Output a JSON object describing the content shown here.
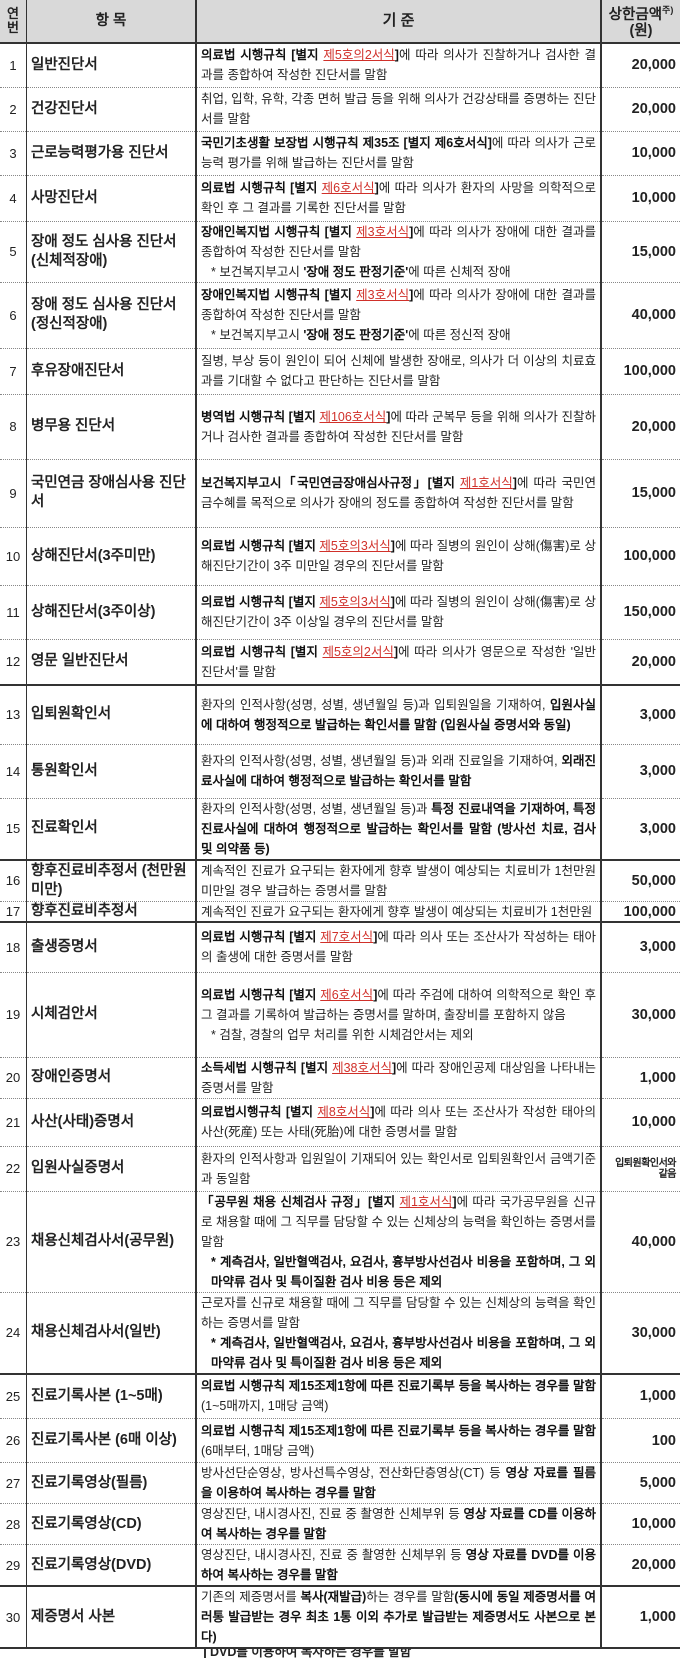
{
  "header": {
    "no": "연번",
    "item": "항 목",
    "criteria": "기 준",
    "amount": "상한금액",
    "amount_sup": "주)",
    "amount_unit": "(원)"
  },
  "rows": [
    {
      "no": "1",
      "item": "일반진단서",
      "criteria": [
        {
          "t": "의료법 시행규칙 [별지 ",
          "s": "b"
        },
        {
          "t": "제5호의2서식",
          "s": "r"
        },
        {
          "t": "]",
          "s": "b"
        },
        {
          "t": "에 따라 의사가 진찰하거나 검사한 결과를 종합하여 작성한 진단서를 말함",
          "s": ""
        }
      ],
      "amount": "20,000"
    },
    {
      "no": "2",
      "item": "건강진단서",
      "criteria": [
        {
          "t": "취업, 입학, 유학, 각종 면허 발급 등을 위해 의사가 건강상태를 증명하는 진단서를 말함",
          "s": ""
        }
      ],
      "amount": "20,000"
    },
    {
      "no": "3",
      "item": "근로능력평가용 진단서",
      "criteria": [
        {
          "t": "국민기초생활 보장법 시행규칙 제35조 [별지 제6호서식]",
          "s": "b"
        },
        {
          "t": "에 따라 의사가 근로능력 평가를 위해 발급하는 진단서를 말함",
          "s": ""
        }
      ],
      "amount": "10,000"
    },
    {
      "no": "4",
      "item": "사망진단서",
      "criteria": [
        {
          "t": "의료법 시행규칙 [별지 ",
          "s": "b"
        },
        {
          "t": "제6호서식",
          "s": "r"
        },
        {
          "t": "]",
          "s": "b"
        },
        {
          "t": "에 따라 의사가 환자의 사망을 의학적으로 확인 후 그 결과를 기록한 진단서를 말함",
          "s": ""
        }
      ],
      "amount": "10,000"
    },
    {
      "no": "5",
      "item": "장애 정도 심사용 진단서 (신체적장애)",
      "criteria": [
        {
          "t": "장애인복지법 시행규칙 [별지 ",
          "s": "b"
        },
        {
          "t": "제3호서식",
          "s": "r"
        },
        {
          "t": "]",
          "s": "b"
        },
        {
          "t": "에 따라 의사가 장애에 대한 결과를 종합하여 작성한 진단서를 말함",
          "s": ""
        }
      ],
      "note": [
        {
          "t": "* 보건복지부고시 ",
          "s": ""
        },
        {
          "t": "'장애 정도 판정기준'",
          "s": "b"
        },
        {
          "t": "에 따른 신체적 장애",
          "s": ""
        }
      ],
      "amount": "15,000"
    },
    {
      "no": "6",
      "item": "장애 정도 심사용 진단서 (정신적장애)",
      "criteria": [
        {
          "t": "장애인복지법 시행규칙 [별지 ",
          "s": "b"
        },
        {
          "t": "제3호서식",
          "s": "r"
        },
        {
          "t": "]",
          "s": "b"
        },
        {
          "t": "에 따라 의사가 장애에 대한 결과를 종합하여 작성한 진단서를 말함",
          "s": ""
        }
      ],
      "note": [
        {
          "t": "* 보건복지부고시 ",
          "s": ""
        },
        {
          "t": "'장애 정도 판정기준'",
          "s": "b"
        },
        {
          "t": "에 따른 정신적 장애",
          "s": ""
        }
      ],
      "amount": "40,000"
    },
    {
      "no": "7",
      "item": "후유장애진단서",
      "criteria": [
        {
          "t": "질병, 부상 등이 원인이 되어 신체에 발생한 장애로, 의사가 더 이상의 치료효과를 기대할 수 없다고 판단하는 진단서를 말함",
          "s": ""
        }
      ],
      "amount": "100,000"
    },
    {
      "no": "8",
      "item": "병무용 진단서",
      "criteria": [
        {
          "t": "병역법 시행규칙 [별지 ",
          "s": "b"
        },
        {
          "t": "제106호서식",
          "s": "r"
        },
        {
          "t": "]",
          "s": "b"
        },
        {
          "t": "에 따라 군복무 등을 위해 의사가 진찰하거나 검사한 결과를 종합하여 작성한 진단서를 말함",
          "s": ""
        }
      ],
      "amount": "20,000"
    },
    {
      "no": "9",
      "item": "국민연금 장애심사용 진단서",
      "criteria": [
        {
          "t": "보건복지부고시「국민연금장애심사규정」[별지 ",
          "s": "b"
        },
        {
          "t": "제1호서식",
          "s": "r"
        },
        {
          "t": "]",
          "s": "b"
        },
        {
          "t": "에 따라 국민연금수혜를 목적으로 의사가 장애의 정도를 종합하여 작성한 진단서를 말함",
          "s": ""
        }
      ],
      "amount": "15,000"
    },
    {
      "no": "10",
      "item": "상해진단서(3주미만)",
      "criteria": [
        {
          "t": "의료법 시행규칙 [별지 ",
          "s": "b"
        },
        {
          "t": "제5호의3서식",
          "s": "r"
        },
        {
          "t": "]",
          "s": "b"
        },
        {
          "t": "에 따라 질병의 원인이 상해(傷害)로 상해진단기간이 3주 미만일 경우의 진단서를 말함",
          "s": ""
        }
      ],
      "amount": "100,000"
    },
    {
      "no": "11",
      "item": "상해진단서(3주이상)",
      "criteria": [
        {
          "t": "의료법 시행규칙 [별지 ",
          "s": "b"
        },
        {
          "t": "제5호의3서식",
          "s": "r"
        },
        {
          "t": "]",
          "s": "b"
        },
        {
          "t": "에 따라 질병의 원인이 상해(傷害)로 상해진단기간이 3주 이상일 경우의 진단서를 말함",
          "s": ""
        }
      ],
      "amount": "150,000"
    },
    {
      "no": "12",
      "item": "영문 일반진단서",
      "criteria": [
        {
          "t": "의료법 시행규칙 [별지 ",
          "s": "b"
        },
        {
          "t": "제5호의2서식",
          "s": "r"
        },
        {
          "t": "]",
          "s": "b"
        },
        {
          "t": "에 따라 의사가 영문으로 작성한 '일반 진단서'를 말함",
          "s": ""
        }
      ],
      "amount": "20,000"
    },
    {
      "no": "13",
      "item": "입퇴원확인서",
      "criteria": [
        {
          "t": "환자의 인적사항(성명, 성별, 생년월일 등)과 입퇴원일을 기재하여, ",
          "s": ""
        },
        {
          "t": "입원사실에 대하여 행정적으로 발급하는 확인서를 말함 (입원사실 증명서와 동일)",
          "s": "b"
        }
      ],
      "amount": "3,000"
    },
    {
      "no": "14",
      "item": "통원확인서",
      "criteria": [
        {
          "t": "환자의 인적사항(성명, 성별, 생년월일 등)과 외래 진료일을 기재하여, ",
          "s": ""
        },
        {
          "t": "외래진료사실에 대하여 행정적으로 발급하는 확인서를 말함",
          "s": "b"
        }
      ],
      "amount": "3,000"
    },
    {
      "no": "15",
      "item": "진료확인서",
      "criteria": [
        {
          "t": "환자의 인적사항(성명, 성별, 생년월일 등)과 ",
          "s": ""
        },
        {
          "t": "특정 진료내역을 기재하여, 특정 진료사실에 대하여 행정적으로 발급하는 확인서를 말함 (방사선 치료, 검사 및 의약품 등)",
          "s": "b"
        }
      ],
      "amount": "3,000"
    },
    {
      "no": "16",
      "item": "향후진료비추정서 (천만원미만)",
      "criteria": [
        {
          "t": "계속적인 진료가 요구되는 환자에게 향후 발생이 예상되는 치료비가 1천만원 미만일 경우 발급하는 증명서를 말함",
          "s": ""
        }
      ],
      "amount": "50,000"
    },
    {
      "no": "17",
      "item": "향후진료비추정서",
      "criteria": [
        {
          "t": "계속적인 진료가 요구되는 환자에게 향후 발생이 예상되는 치료비가 1천만원",
          "s": ""
        }
      ],
      "amount": "100,000"
    },
    {
      "no": "18",
      "item": "출생증명서",
      "criteria": [
        {
          "t": "의료법 시행규칙 [별지 ",
          "s": "b"
        },
        {
          "t": "제7호서식",
          "s": "r"
        },
        {
          "t": "]",
          "s": "b"
        },
        {
          "t": "에 따라 의사 또는 조산사가 작성하는 태아의 출생에 대한 증명서를 말함",
          "s": ""
        }
      ],
      "amount": "3,000"
    },
    {
      "no": "19",
      "item": "시체검안서",
      "criteria": [
        {
          "t": "의료법 시행규칙 [별지 ",
          "s": "b"
        },
        {
          "t": "제6호서식",
          "s": "r"
        },
        {
          "t": "]",
          "s": "b"
        },
        {
          "t": "에 따라 주검에 대하여 의학적으로 확인 후 그 결과를 기록하여 발급하는 증명서를 말하며, 출장비를 포함하지 않음",
          "s": ""
        }
      ],
      "note": [
        {
          "t": "* 검찰, 경찰의 업무 처리를 위한 시체검안서는 제외",
          "s": ""
        }
      ],
      "amount": "30,000"
    },
    {
      "no": "20",
      "item": "장애인증명서",
      "criteria": [
        {
          "t": "소득세법 시행규칙 [별지 ",
          "s": "b"
        },
        {
          "t": "제38호서식",
          "s": "r"
        },
        {
          "t": "]",
          "s": "b"
        },
        {
          "t": "에 따라 장애인공제 대상임을 나타내는 증명서를 말함",
          "s": ""
        }
      ],
      "amount": "1,000"
    },
    {
      "no": "21",
      "item": "사산(사태)증명서",
      "criteria": [
        {
          "t": "의료법시행규칙 [별지 ",
          "s": "b"
        },
        {
          "t": "제8호서식",
          "s": "r"
        },
        {
          "t": "]",
          "s": "b"
        },
        {
          "t": "에 따라 의사 또는 조산사가 작성한 태아의 사산(死産) 또는 사태(死胎)에 대한 증명서를 말함",
          "s": ""
        }
      ],
      "amount": "10,000"
    },
    {
      "no": "22",
      "item": "입원사실증명서",
      "criteria": [
        {
          "t": "환자의 인적사항과 입원일이 기재되어 있는 확인서로 입퇴원확인서 금액기준과 동일함",
          "s": ""
        }
      ],
      "amount": "입퇴원확인서와 같음",
      "amount_small": true
    },
    {
      "no": "23",
      "item": "채용신체검사서(공무원)",
      "criteria": [
        {
          "t": "「공무원 채용 신체검사 규정」[별지 ",
          "s": "b"
        },
        {
          "t": "제1호서식",
          "s": "r"
        },
        {
          "t": "]",
          "s": "b"
        },
        {
          "t": "에 따라 국가공무원을 신규로 채용할 때에 그 직무를 담당할 수 있는 신체상의 능력을 확인하는 증명서를 말함",
          "s": ""
        }
      ],
      "note": [
        {
          "t": "* 계측검사, 일반혈액검사, 요검사, 흉부방사선검사 비용을 포함하며, 그 외 마약류 검사 및 특이질환 검사 비용 등은 제외",
          "s": "b"
        }
      ],
      "amount": "40,000"
    },
    {
      "no": "24",
      "item": "채용신체검사서(일반)",
      "criteria": [
        {
          "t": "근로자를 신규로 채용할 때에 그 직무를 담당할 수 있는 신체상의 능력을 확인하는 증명서를 말함",
          "s": ""
        }
      ],
      "note": [
        {
          "t": "* 계측검사, 일반혈액검사, 요검사, 흉부방사선검사 비용을 포함하며, 그 외 마약류 검사 및 특이질환 검사 비용 등은 제외",
          "s": "b"
        }
      ],
      "amount": "30,000"
    },
    {
      "no": "25",
      "item": "진료기록사본 (1~5매)",
      "criteria": [
        {
          "t": "의료법 시행규칙 제15조제1항에 따른 진료기록부 등을 복사하는 경우를 말함",
          "s": "b"
        },
        {
          "t": "(1~5매까지, 1매당 금액)",
          "s": ""
        }
      ],
      "amount": "1,000"
    },
    {
      "no": "26",
      "item": "진료기록사본 (6매 이상)",
      "criteria": [
        {
          "t": "의료법 시행규칙 제15조제1항에 따른 진료기록부 등을 복사하는 경우를 말함",
          "s": "b"
        },
        {
          "t": "(6매부터, 1매당 금액)",
          "s": ""
        }
      ],
      "amount": "100"
    },
    {
      "no": "27",
      "item": "진료기록영상(필름)",
      "criteria": [
        {
          "t": "방사선단순영상, 방사선특수영상, 전산화단층영상(CT) 등 ",
          "s": ""
        },
        {
          "t": "영상 자료를 필름을 이용하여 복사하는 경우를 말함",
          "s": "b"
        }
      ],
      "amount": "5,000"
    },
    {
      "no": "28",
      "item": "진료기록영상(CD)",
      "criteria": [
        {
          "t": "영상진단, 내시경사진, 진료 중 촬영한 신체부위 등 ",
          "s": ""
        },
        {
          "t": "영상 자료를 CD를 이용하여 복사하는 경우를 말함",
          "s": "b"
        }
      ],
      "amount": "10,000"
    },
    {
      "no": "29",
      "item": "진료기록영상(DVD)",
      "criteria": [
        {
          "t": "영상진단, 내시경사진, 진료 중 촬영한 신체부위 등 ",
          "s": ""
        },
        {
          "t": "영상 자료를 DVD를 이용하여 복사하는 경우를 말함",
          "s": "b"
        }
      ],
      "amount": "20,000"
    },
    {
      "no": "30",
      "item": "제증명서 사본",
      "criteria": [
        {
          "t": "기존의 제증명서를 ",
          "s": ""
        },
        {
          "t": "복사(재발급)",
          "s": "b"
        },
        {
          "t": "하는 경우를 말함",
          "s": ""
        },
        {
          "t": "(동시에 동일 제증명서를 여러통 발급받는 경우 최초 1통 이외 추가로 발급받는 제증명서도 사본으로 본다)",
          "s": "b"
        }
      ],
      "amount": "1,000"
    }
  ],
  "trailing_fragment": "DVD를 이용하여 복사하는 경우를 말함",
  "colors": {
    "header_bg": "#d9d9d9",
    "form_link": "#d0302a",
    "border": "#333333"
  }
}
